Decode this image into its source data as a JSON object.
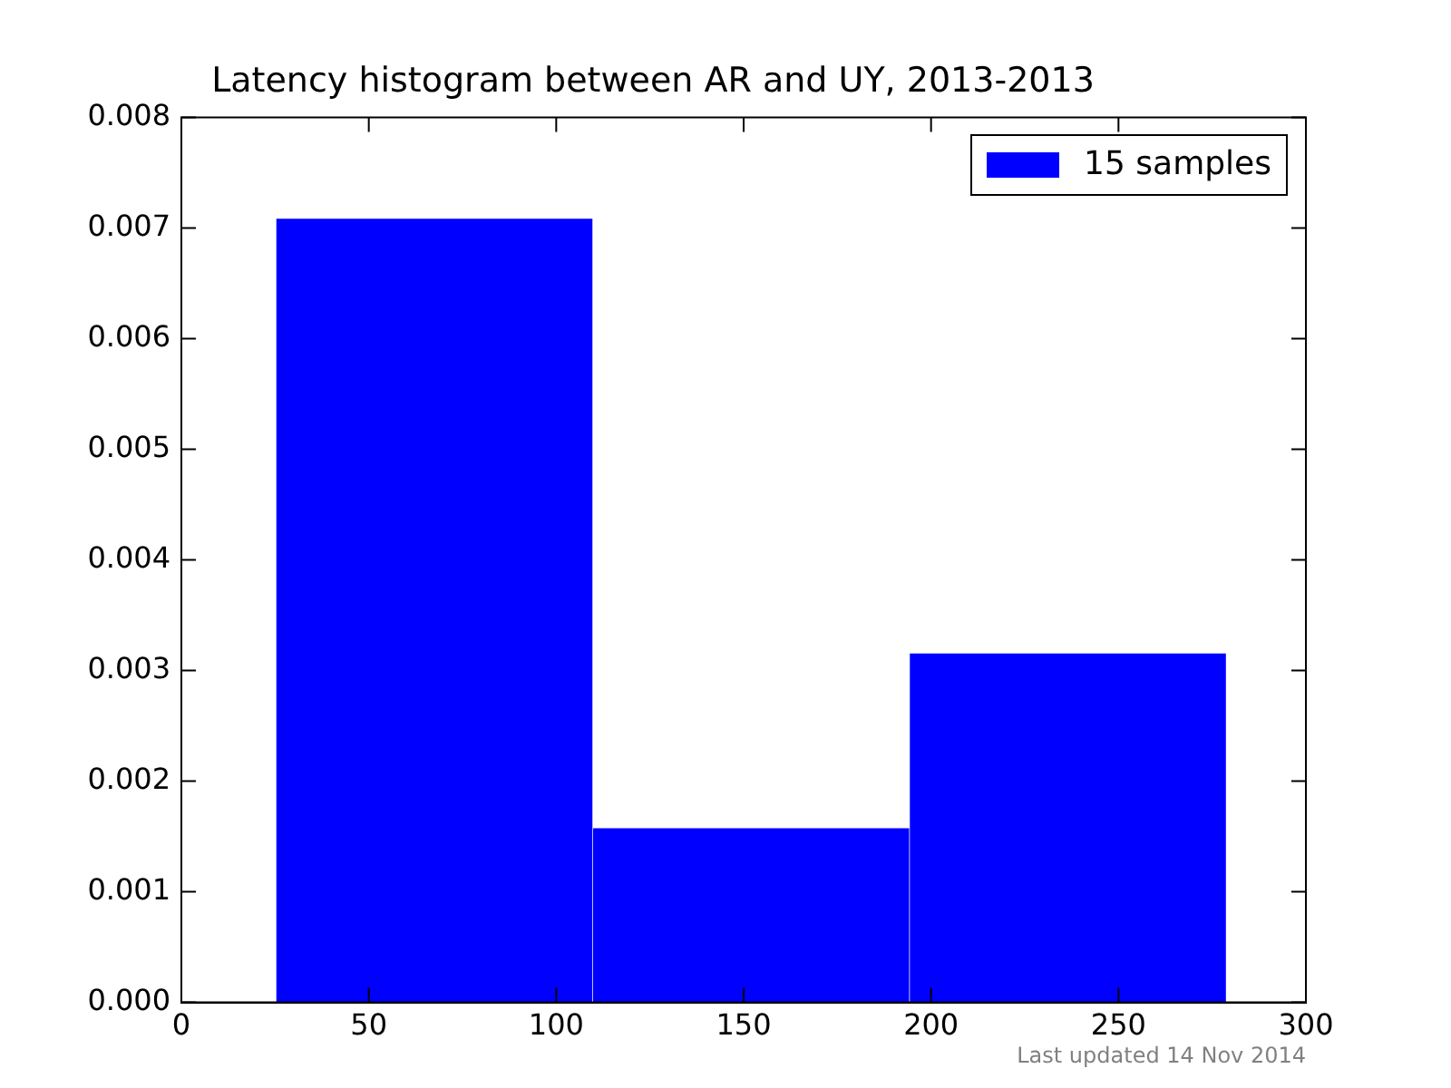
{
  "chart_data": {
    "type": "histogram",
    "title": "Latency histogram between AR and UY, 2013-2013",
    "bins": [
      25,
      110,
      194,
      279
    ],
    "series": [
      {
        "name": "15 samples",
        "color": "#0000ff",
        "values": [
          0.00708,
          0.00157,
          0.00315
        ]
      }
    ],
    "xlim": [
      0,
      300
    ],
    "xticks": [
      0,
      50,
      100,
      150,
      200,
      250,
      300
    ],
    "ylim": [
      0,
      0.008
    ],
    "yticks": [
      {
        "value": 0,
        "label": "0.000"
      },
      {
        "value": 0.001,
        "label": "0.001"
      },
      {
        "value": 0.002,
        "label": "0.002"
      },
      {
        "value": 0.003,
        "label": "0.003"
      },
      {
        "value": 0.004,
        "label": "0.004"
      },
      {
        "value": 0.005,
        "label": "0.005"
      },
      {
        "value": 0.006,
        "label": "0.006"
      },
      {
        "value": 0.007,
        "label": "0.007"
      },
      {
        "value": 0.008,
        "label": "0.008"
      }
    ],
    "grid": false,
    "legend": "top right",
    "annotations": [
      "Last updated 14 Nov 2014"
    ]
  }
}
